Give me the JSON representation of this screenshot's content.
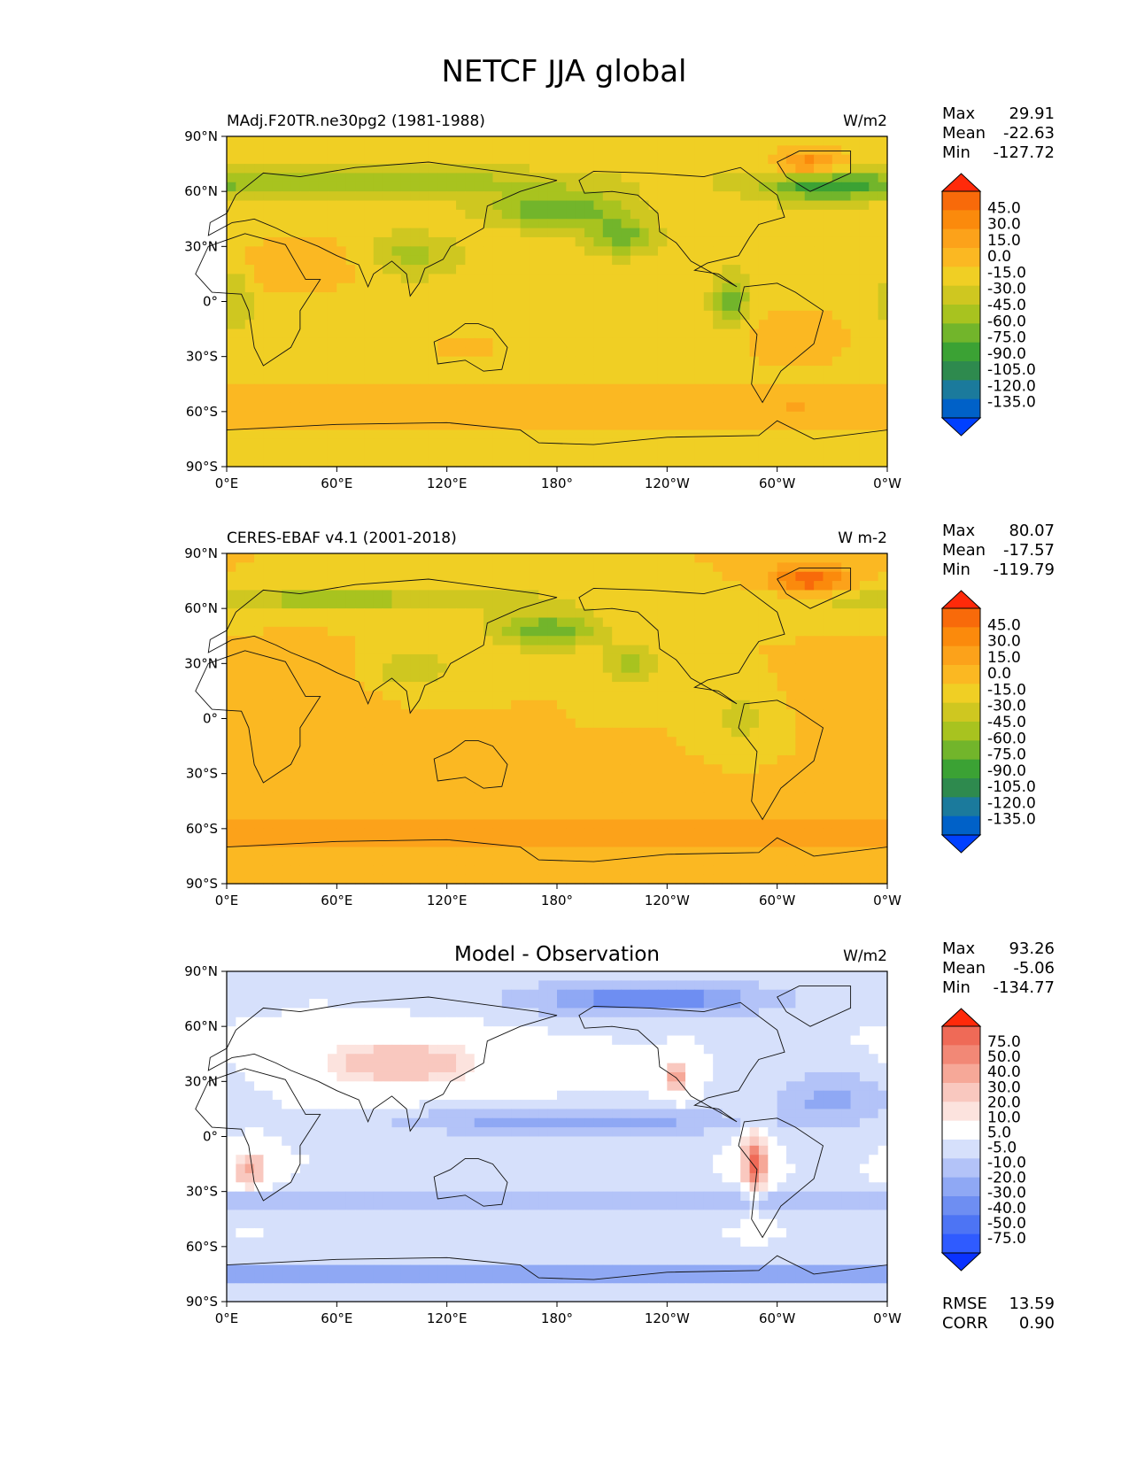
{
  "title": "NETCF JJA global",
  "axes": {
    "lat_ticks": [
      "90°N",
      "60°N",
      "30°N",
      "0°",
      "30°S",
      "60°S",
      "90°S"
    ],
    "lon_ticks": [
      "0°E",
      "60°E",
      "120°E",
      "180°",
      "120°W",
      "60°W",
      "0°W"
    ]
  },
  "colors": {
    "main_scale": [
      "#0040ff",
      "#0061c8",
      "#1b7a9c",
      "#2e8a4e",
      "#3ba234",
      "#72b52b",
      "#a8c31f",
      "#cfc720",
      "#f0cf24",
      "#fbb822",
      "#fca21a",
      "#fb8a0c",
      "#f86a0a",
      "#ff2a0a"
    ],
    "diff_scale": [
      "#0a32ff",
      "#2f5bff",
      "#4d74f4",
      "#6e8ef2",
      "#8fa8f4",
      "#b3c3f8",
      "#d6e0fb",
      "#ffffff",
      "#fce3de",
      "#f9c8bf",
      "#f6a898",
      "#f28876",
      "#ef6a57",
      "#ff2a0a"
    ]
  },
  "chart_data": [
    {
      "type": "heatmap",
      "panel": "model",
      "title": "MAdj.F20TR.ne30pg2 (1981-1988)",
      "units": "W/m2",
      "stats": {
        "max_label": "Max",
        "max": "29.91",
        "mean_label": "Mean",
        "mean": "-22.63",
        "min_label": "Min",
        "min": "-127.72"
      },
      "colorbar_levels": [
        "45.0",
        "30.0",
        "15.0",
        "0.0",
        "-15.0",
        "-30.0",
        "-45.0",
        "-60.0",
        "-75.0",
        "-90.0",
        "-105.0",
        "-120.0",
        "-135.0"
      ],
      "xlim": [
        0,
        360
      ],
      "ylim": [
        -90,
        90
      ]
    },
    {
      "type": "heatmap",
      "panel": "observation",
      "title": "CERES-EBAF v4.1 (2001-2018)",
      "units": "W m-2",
      "stats": {
        "max_label": "Max",
        "max": "80.07",
        "mean_label": "Mean",
        "mean": "-17.57",
        "min_label": "Min",
        "min": "-119.79"
      },
      "colorbar_levels": [
        "45.0",
        "30.0",
        "15.0",
        "0.0",
        "-15.0",
        "-30.0",
        "-45.0",
        "-60.0",
        "-75.0",
        "-90.0",
        "-105.0",
        "-120.0",
        "-135.0"
      ],
      "xlim": [
        0,
        360
      ],
      "ylim": [
        -90,
        90
      ]
    },
    {
      "type": "heatmap",
      "panel": "difference",
      "title": "Model - Observation",
      "units": "W/m2",
      "stats": {
        "max_label": "Max",
        "max": "93.26",
        "mean_label": "Mean",
        "mean": "-5.06",
        "min_label": "Min",
        "min": "-134.77"
      },
      "colorbar_levels": [
        "75.0",
        "50.0",
        "40.0",
        "30.0",
        "20.0",
        "10.0",
        "5.0",
        "-5.0",
        "-10.0",
        "-20.0",
        "-30.0",
        "-40.0",
        "-50.0",
        "-75.0"
      ],
      "rmse_label": "RMSE",
      "rmse": "13.59",
      "corr_label": "CORR",
      "corr": "0.90",
      "xlim": [
        0,
        360
      ],
      "ylim": [
        -90,
        90
      ]
    }
  ]
}
